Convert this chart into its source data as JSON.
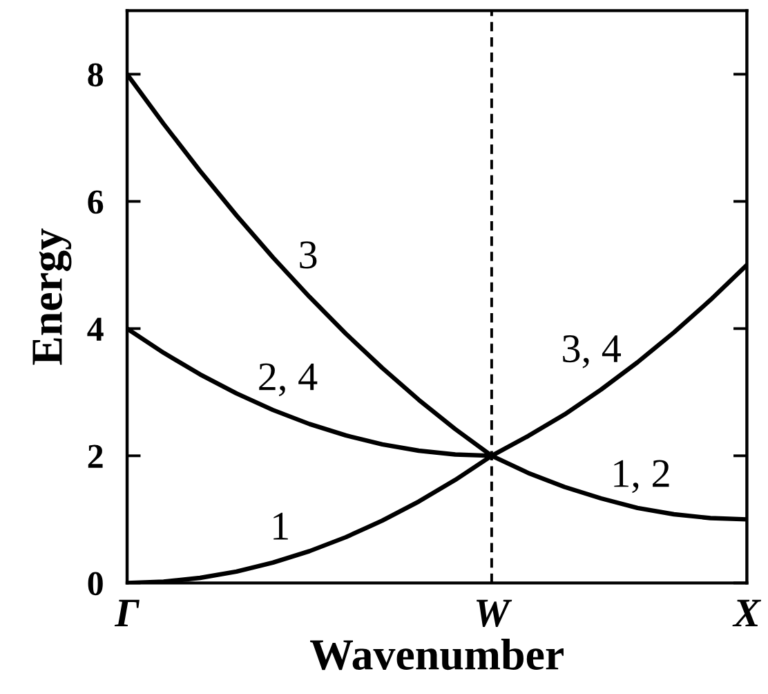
{
  "chart_data": {
    "type": "line",
    "xlabel": "Wavenumber",
    "ylabel": "Energy",
    "categories": [
      "Γ",
      null,
      null,
      null,
      null,
      null,
      null,
      null,
      null,
      null,
      "W",
      null,
      null,
      null,
      null,
      null,
      null,
      "X"
    ],
    "ylim": [
      0,
      9
    ],
    "yticks": [
      0,
      2,
      4,
      6,
      8
    ],
    "series": [
      {
        "color": "#000000",
        "values": [
          0,
          0.02,
          0.08,
          0.18,
          0.32,
          0.5,
          0.72,
          0.98,
          1.28,
          1.62,
          2,
          2.31,
          2.65,
          3.04,
          3.47,
          3.94,
          4.45,
          5
        ]
      },
      {
        "color": "#000000",
        "values": [
          4,
          3.62,
          3.28,
          2.98,
          2.72,
          2.5,
          2.32,
          2.18,
          2.08,
          2.02,
          2,
          null,
          null,
          null,
          null,
          null,
          null,
          null
        ]
      },
      {
        "color": "#000000",
        "values": [
          8,
          7.22,
          6.48,
          5.78,
          5.12,
          4.5,
          3.92,
          3.38,
          2.88,
          2.42,
          2,
          1.73,
          1.51,
          1.33,
          1.18,
          1.08,
          1.02,
          1
        ]
      }
    ],
    "ref_lines": [
      {
        "axis": "x",
        "value": "W",
        "color": "#000000",
        "line_style": "dashed"
      }
    ],
    "annotations": [
      "3",
      "2, 4",
      "1",
      "3, 4",
      "1, 2"
    ]
  }
}
